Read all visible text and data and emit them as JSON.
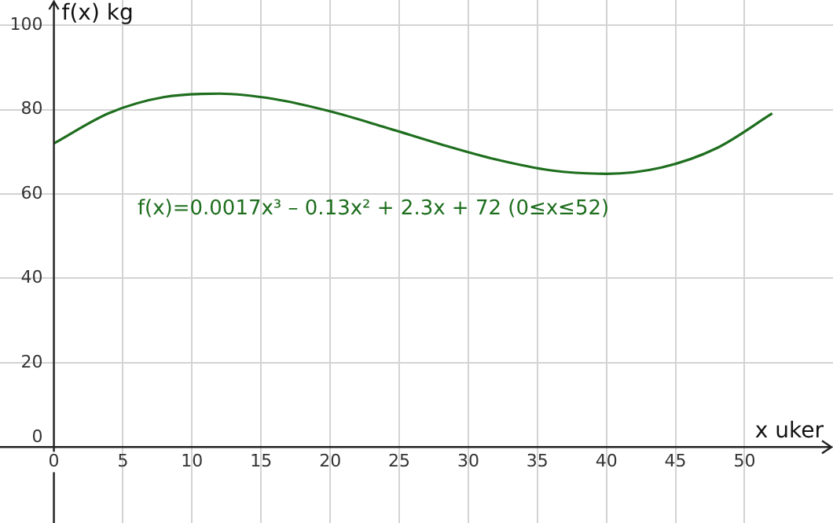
{
  "chart_data": {
    "type": "line",
    "xlabel": "x uker",
    "ylabel": "f(x) kg",
    "annotations": [
      "f(x)=0.0017x³ – 0.13x² + 2.3x + 72 (0≤x≤52)"
    ],
    "x": [
      0,
      4,
      8,
      12,
      16,
      20,
      24,
      28,
      32,
      36,
      40,
      44,
      48,
      52
    ],
    "series": [
      {
        "color": "#1e6e1e",
        "values": [
          72,
          79.2,
          83,
          83.8,
          82.5,
          79.6,
          75.8,
          71.8,
          68.2,
          65.6,
          64.8,
          66.3,
          70.9,
          79.1
        ]
      }
    ],
    "xlim": [
      -3.9,
      56.4
    ],
    "ylim": [
      -18,
      106
    ],
    "xticks": [
      0,
      5,
      10,
      15,
      20,
      25,
      30,
      35,
      40,
      45,
      50
    ],
    "yticks": [
      0,
      20,
      40,
      60,
      80,
      100
    ],
    "grid": true,
    "legend": false,
    "marker": "none",
    "line_style": "solid"
  }
}
